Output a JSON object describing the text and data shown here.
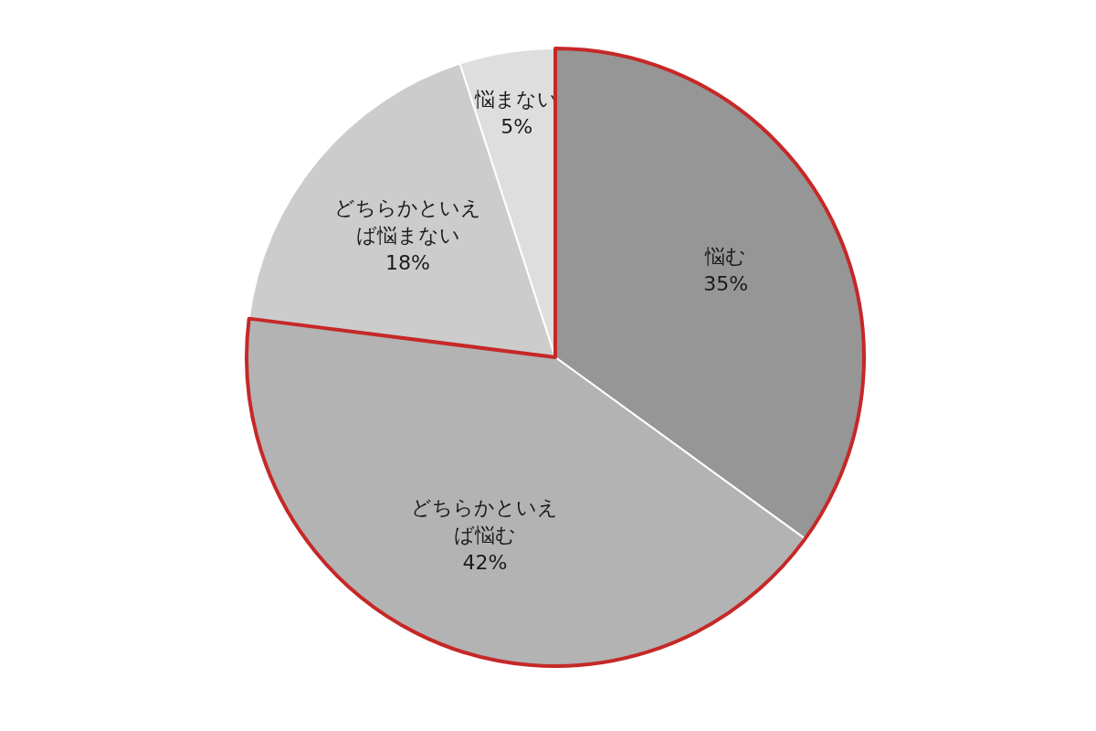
{
  "chart_data": {
    "type": "pie",
    "categories": [
      "悩む",
      "どちらかといえば悩む",
      "どちらかといえば悩まない",
      "悩まない"
    ],
    "values": [
      35,
      42,
      18,
      5
    ],
    "value_labels": [
      "35%",
      "42%",
      "18%",
      "5%"
    ],
    "colors": [
      "#969696",
      "#b3b3b3",
      "#cccccc",
      "#dedede"
    ],
    "legend": false
  }
}
